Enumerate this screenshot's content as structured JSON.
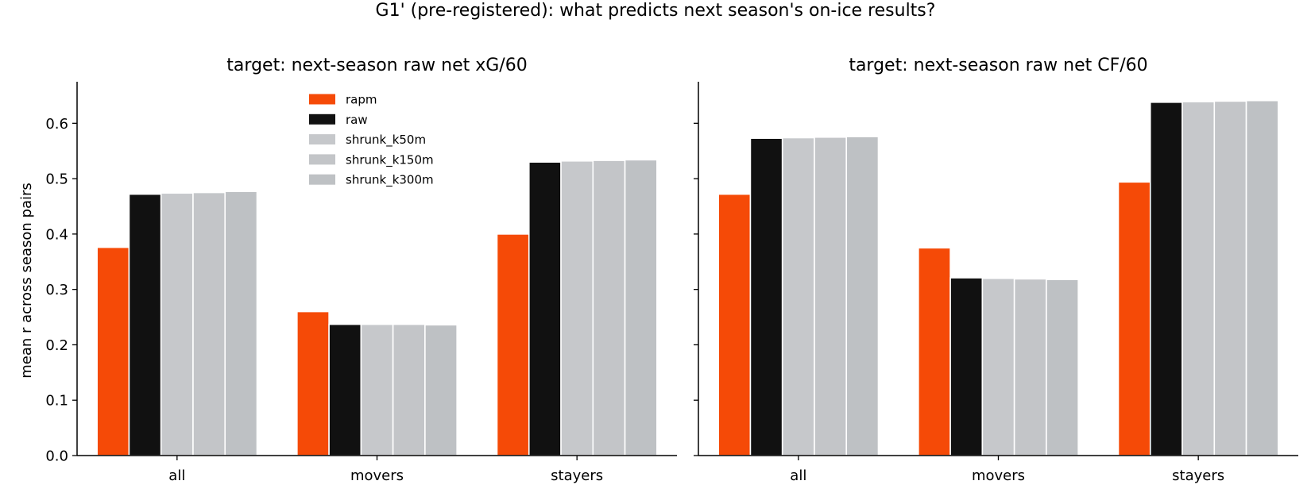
{
  "figure": {
    "suptitle": "G1' (pre-registered): what predicts next season's on-ice results?"
  },
  "colors": {
    "rapm": "#f54a07",
    "raw": "#111111",
    "shrunk_k50m": "#c6c8cb",
    "shrunk_k150m": "#c3c5c8",
    "shrunk_k300m": "#bec1c4",
    "axis": "#000000"
  },
  "chart_data": [
    {
      "type": "bar",
      "title": "target: next-season raw net xG/60",
      "xlabel": "",
      "ylabel": "mean r across season pairs",
      "ylim": [
        0,
        0.675
      ],
      "yticks": [
        "0.0",
        "0.1",
        "0.2",
        "0.3",
        "0.4",
        "0.5",
        "0.6"
      ],
      "categories": [
        "all",
        "movers",
        "stayers"
      ],
      "legend": {
        "placement": "upper-center"
      },
      "series": [
        {
          "name": "rapm",
          "values": [
            0.376,
            0.26,
            0.4
          ]
        },
        {
          "name": "raw",
          "values": [
            0.472,
            0.237,
            0.53
          ]
        },
        {
          "name": "shrunk_k50m",
          "values": [
            0.474,
            0.237,
            0.532
          ]
        },
        {
          "name": "shrunk_k150m",
          "values": [
            0.475,
            0.237,
            0.533
          ]
        },
        {
          "name": "shrunk_k300m",
          "values": [
            0.477,
            0.236,
            0.534
          ]
        }
      ]
    },
    {
      "type": "bar",
      "title": "target: next-season raw net CF/60",
      "xlabel": "",
      "ylabel": "",
      "ylim": [
        0,
        0.675
      ],
      "categories": [
        "all",
        "movers",
        "stayers"
      ],
      "series": [
        {
          "name": "rapm",
          "values": [
            0.472,
            0.375,
            0.494
          ]
        },
        {
          "name": "raw",
          "values": [
            0.573,
            0.321,
            0.638
          ]
        },
        {
          "name": "shrunk_k50m",
          "values": [
            0.574,
            0.32,
            0.639
          ]
        },
        {
          "name": "shrunk_k150m",
          "values": [
            0.575,
            0.319,
            0.64
          ]
        },
        {
          "name": "shrunk_k300m",
          "values": [
            0.576,
            0.318,
            0.641
          ]
        }
      ]
    }
  ]
}
